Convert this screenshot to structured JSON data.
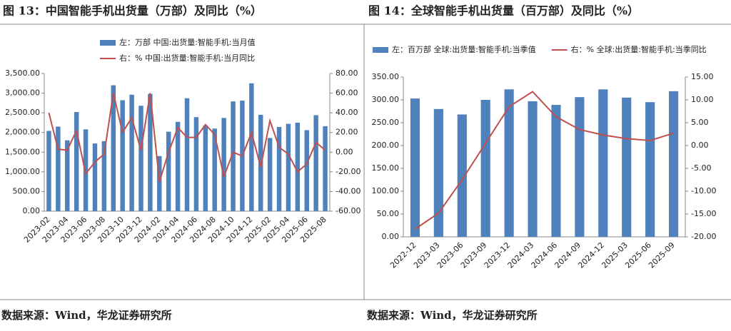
{
  "chart_data": [
    {
      "type": "bar-line",
      "title": "图 13：中国智能手机出货量（万部）及同比（%）",
      "source": "数据来源：Wind，华龙证券研究所",
      "legend": "top",
      "categories": [
        "2023-02",
        null,
        "2023-04",
        null,
        "2023-06",
        null,
        "2023-08",
        null,
        "2023-10",
        null,
        "2023-12",
        null,
        "2024-02",
        null,
        "2024-04",
        null,
        "2024-06",
        null,
        "2024-08",
        null,
        "2024-10",
        null,
        "2024-12",
        null,
        "2025-02",
        null,
        "2025-04",
        null,
        "2025-06",
        null,
        "2025-08"
      ],
      "series": [
        {
          "name": "左：万部 中国:出货量:智能手机:当月值",
          "color": "#4f81bd",
          "kind": "bar",
          "values": [
            2040,
            2150,
            1800,
            2520,
            2080,
            1720,
            1780,
            3200,
            2820,
            2960,
            2680,
            2980,
            1400,
            2020,
            2270,
            2870,
            2390,
            2180,
            2100,
            2370,
            2790,
            2810,
            3250,
            2450,
            1860,
            2140,
            2220,
            2250,
            2060,
            2440,
            2160
          ]
        },
        {
          "name": "右：% 中国:出货量:智能手机:当月同比",
          "color": "#c0504d",
          "kind": "line",
          "axis": "y2",
          "values": [
            40,
            3,
            2,
            22,
            -22,
            -10,
            -2,
            60,
            20,
            35,
            2,
            60,
            -30,
            0,
            25,
            15,
            15,
            28,
            18,
            -25,
            0,
            -4,
            20,
            -15,
            32,
            5,
            -2,
            -20,
            -12,
            10,
            2
          ]
        }
      ],
      "ylim": [
        0,
        3500
      ],
      "yticks": [
        {
          "value": 0,
          "label": "0.00"
        },
        {
          "value": 500,
          "label": "500.00"
        },
        {
          "value": 1000,
          "label": "1,000.00"
        },
        {
          "value": 1500,
          "label": "1,500.00"
        },
        {
          "value": 2000,
          "label": "2,000.00"
        },
        {
          "value": 2500,
          "label": "2,500.00"
        },
        {
          "value": 3000,
          "label": "3,000.00"
        },
        {
          "value": 3500,
          "label": "3,500.00"
        }
      ],
      "y2lim": [
        -60,
        80
      ],
      "y2ticks": [
        {
          "value": -60,
          "label": "-60.00"
        },
        {
          "value": -40,
          "label": "-40.00"
        },
        {
          "value": -20,
          "label": "-20.00"
        },
        {
          "value": 0,
          "label": "0.00"
        },
        {
          "value": 20,
          "label": "20.00"
        },
        {
          "value": 40,
          "label": "40.00"
        },
        {
          "value": 60,
          "label": "60.00"
        },
        {
          "value": 80,
          "label": "80.00"
        }
      ]
    },
    {
      "type": "bar-line",
      "title": "图 14：全球智能手机出货量（百万部）及同比（%）",
      "source": "数据来源：Wind，华龙证券研究所",
      "legend": "top",
      "categories": [
        "2022-12",
        "2023-03",
        "2023-06",
        "2023-09",
        "2023-12",
        "2024-03",
        "2024-06",
        "2024-09",
        "2024-12",
        "2025-03",
        "2025-06",
        "2025-09"
      ],
      "series": [
        {
          "name": "左：百万部 全球:出货量:智能手机:当季值",
          "color": "#4f81bd",
          "kind": "bar",
          "values": [
            303,
            280,
            268,
            300,
            323,
            297,
            289,
            306,
            323,
            305,
            295,
            319
          ]
        },
        {
          "name": "右：% 全球:出货量:智能手机:当季同比",
          "color": "#c0504d",
          "kind": "line",
          "axis": "y2",
          "values": [
            -18.3,
            -14.8,
            -7.5,
            0.5,
            8.5,
            11.8,
            6.3,
            3.5,
            2.3,
            1.5,
            1.1,
            2.7
          ]
        }
      ],
      "ylim": [
        0,
        350
      ],
      "yticks": [
        {
          "value": 0,
          "label": "0.00"
        },
        {
          "value": 50,
          "label": "50.00"
        },
        {
          "value": 100,
          "label": "100.00"
        },
        {
          "value": 150,
          "label": "150.00"
        },
        {
          "value": 200,
          "label": "200.00"
        },
        {
          "value": 250,
          "label": "250.00"
        },
        {
          "value": 300,
          "label": "300.00"
        },
        {
          "value": 350,
          "label": "350.00"
        }
      ],
      "y2lim": [
        -20,
        15
      ],
      "y2ticks": [
        {
          "value": -20,
          "label": "-20.00"
        },
        {
          "value": -15,
          "label": "-15.00"
        },
        {
          "value": -10,
          "label": "-10.00"
        },
        {
          "value": -5,
          "label": "-5.00"
        },
        {
          "value": 0,
          "label": "0.00"
        },
        {
          "value": 5,
          "label": "5.00"
        },
        {
          "value": 10,
          "label": "10.00"
        },
        {
          "value": 15,
          "label": "15.00"
        }
      ]
    }
  ]
}
